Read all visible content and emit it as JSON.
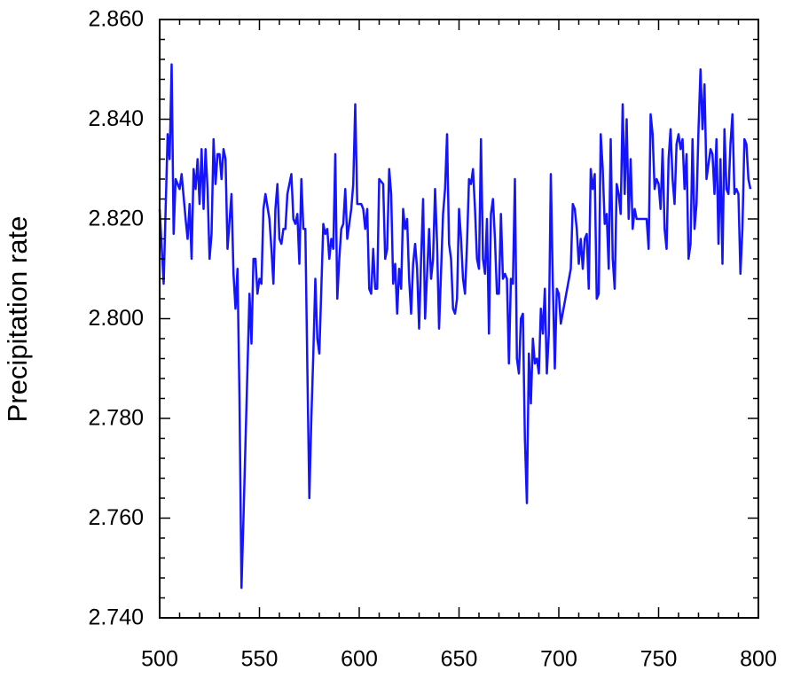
{
  "chart_data": {
    "type": "line",
    "ylabel": "Precipitation rate",
    "color": "#1414ff",
    "xlim": [
      500,
      800
    ],
    "ylim": [
      2.74,
      2.86
    ],
    "xticks": [
      500,
      550,
      600,
      650,
      700,
      750,
      800
    ],
    "xminorticks": [
      510,
      520,
      530,
      540,
      560,
      570,
      580,
      590,
      610,
      620,
      630,
      640,
      660,
      670,
      680,
      690,
      710,
      720,
      730,
      740,
      760,
      770,
      780,
      790
    ],
    "yticks": [
      {
        "value": 2.74,
        "label": "2.740"
      },
      {
        "value": 2.76,
        "label": "2.760"
      },
      {
        "value": 2.78,
        "label": "2.780"
      },
      {
        "value": 2.8,
        "label": "2.800"
      },
      {
        "value": 2.82,
        "label": "2.820"
      },
      {
        "value": 2.84,
        "label": "2.840"
      },
      {
        "value": 2.86,
        "label": "2.860"
      }
    ],
    "yminorticks": [
      2.744,
      2.748,
      2.752,
      2.756,
      2.764,
      2.768,
      2.772,
      2.776,
      2.784,
      2.788,
      2.792,
      2.796,
      2.804,
      2.808,
      2.812,
      2.816,
      2.824,
      2.828,
      2.832,
      2.836,
      2.844,
      2.848,
      2.852,
      2.856
    ],
    "x": [
      500,
      502,
      504,
      505,
      506,
      507,
      508,
      510,
      511,
      513,
      514,
      515,
      516,
      517,
      518,
      519,
      520,
      521,
      522,
      523,
      524,
      525,
      526,
      527,
      528,
      529,
      530,
      531,
      532,
      533,
      534,
      536,
      537,
      538,
      539,
      540,
      541,
      542,
      544,
      545,
      546,
      547,
      548,
      549,
      550,
      551,
      552,
      553,
      555,
      556,
      557,
      558,
      559,
      560,
      561,
      562,
      563,
      564,
      566,
      567,
      568,
      569,
      570,
      571,
      572,
      573,
      574,
      575,
      576,
      577,
      578,
      579,
      580,
      582,
      583,
      584,
      585,
      586,
      587,
      588,
      589,
      590,
      591,
      592,
      593,
      594,
      596,
      597,
      598,
      599,
      600,
      601,
      602,
      603,
      604,
      605,
      606,
      607,
      608,
      609,
      610,
      612,
      613,
      614,
      615,
      616,
      617,
      618,
      619,
      620,
      621,
      622,
      623,
      624,
      625,
      626,
      627,
      628,
      629,
      630,
      631,
      632,
      633,
      634,
      635,
      636,
      637,
      638,
      639,
      640,
      642,
      643,
      644,
      645,
      646,
      647,
      648,
      649,
      650,
      651,
      652,
      653,
      654,
      655,
      656,
      657,
      658,
      659,
      660,
      661,
      662,
      663,
      664,
      665,
      666,
      667,
      668,
      669,
      670,
      671,
      672,
      673,
      674,
      675,
      676,
      677,
      678,
      679,
      680,
      681,
      682,
      683,
      684,
      685,
      686,
      687,
      688,
      689,
      690,
      691,
      692,
      693,
      694,
      695,
      696,
      697,
      698,
      699,
      700,
      701,
      706,
      707,
      708,
      709,
      710,
      711,
      712,
      713,
      714,
      715,
      716,
      717,
      718,
      719,
      720,
      721,
      722,
      723,
      724,
      725,
      726,
      727,
      728,
      729,
      730,
      731,
      732,
      733,
      734,
      735,
      736,
      737,
      738,
      739,
      744,
      745,
      746,
      747,
      748,
      749,
      750,
      751,
      752,
      753,
      754,
      755,
      756,
      757,
      758,
      759,
      760,
      761,
      762,
      763,
      764,
      765,
      766,
      767,
      768,
      769,
      770,
      771,
      772,
      773,
      774,
      775,
      776,
      777,
      778,
      779,
      780,
      781,
      782,
      783,
      784,
      785,
      786,
      787,
      788,
      789,
      790,
      791,
      792,
      793,
      794,
      795,
      796
    ],
    "values": [
      2.822,
      2.807,
      2.837,
      2.832,
      2.851,
      2.817,
      2.828,
      2.826,
      2.829,
      2.82,
      2.816,
      2.823,
      2.812,
      2.83,
      2.826,
      2.832,
      2.823,
      2.834,
      2.822,
      2.834,
      2.826,
      2.812,
      2.817,
      2.836,
      2.827,
      2.833,
      2.833,
      2.828,
      2.834,
      2.832,
      2.814,
      2.825,
      2.809,
      2.802,
      2.81,
      2.784,
      2.746,
      2.76,
      2.79,
      2.805,
      2.795,
      2.812,
      2.812,
      2.805,
      2.808,
      2.807,
      2.822,
      2.825,
      2.82,
      2.814,
      2.807,
      2.822,
      2.827,
      2.816,
      2.815,
      2.818,
      2.818,
      2.825,
      2.829,
      2.82,
      2.819,
      2.821,
      2.811,
      2.828,
      2.818,
      2.818,
      2.79,
      2.764,
      2.78,
      2.793,
      2.808,
      2.796,
      2.793,
      2.819,
      2.817,
      2.818,
      2.812,
      2.816,
      2.814,
      2.833,
      2.804,
      2.812,
      2.818,
      2.819,
      2.826,
      2.816,
      2.822,
      2.827,
      2.843,
      2.823,
      2.823,
      2.823,
      2.822,
      2.818,
      2.822,
      2.806,
      2.805,
      2.814,
      2.806,
      2.806,
      2.828,
      2.827,
      2.812,
      2.814,
      2.83,
      2.825,
      2.807,
      2.811,
      2.801,
      2.81,
      2.806,
      2.822,
      2.818,
      2.82,
      2.808,
      2.801,
      2.811,
      2.815,
      2.81,
      2.798,
      2.812,
      2.824,
      2.8,
      2.809,
      2.818,
      2.808,
      2.812,
      2.826,
      2.815,
      2.798,
      2.821,
      2.826,
      2.837,
      2.815,
      2.812,
      2.802,
      2.801,
      2.804,
      2.822,
      2.816,
      2.808,
      2.805,
      2.815,
      2.828,
      2.827,
      2.83,
      2.822,
      2.812,
      2.81,
      2.836,
      2.812,
      2.809,
      2.82,
      2.797,
      2.821,
      2.824,
      2.816,
      2.805,
      2.805,
      2.821,
      2.808,
      2.809,
      2.808,
      2.791,
      2.808,
      2.807,
      2.828,
      2.792,
      2.789,
      2.8,
      2.801,
      2.776,
      2.763,
      2.793,
      2.783,
      2.796,
      2.791,
      2.792,
      2.789,
      2.802,
      2.797,
      2.806,
      2.789,
      2.797,
      2.829,
      2.807,
      2.79,
      2.806,
      2.805,
      2.799,
      2.81,
      2.823,
      2.822,
      2.818,
      2.811,
      2.816,
      2.81,
      2.816,
      2.817,
      2.806,
      2.83,
      2.826,
      2.829,
      2.804,
      2.805,
      2.837,
      2.83,
      2.819,
      2.821,
      2.81,
      2.836,
      2.812,
      2.806,
      2.827,
      2.825,
      2.821,
      2.843,
      2.825,
      2.84,
      2.82,
      2.832,
      2.818,
      2.822,
      2.82,
      2.82,
      2.814,
      2.841,
      2.837,
      2.826,
      2.828,
      2.827,
      2.822,
      2.834,
      2.818,
      2.814,
      2.832,
      2.838,
      2.828,
      2.823,
      2.835,
      2.837,
      2.834,
      2.836,
      2.826,
      2.833,
      2.812,
      2.815,
      2.836,
      2.818,
      2.823,
      2.838,
      2.85,
      2.838,
      2.847,
      2.828,
      2.831,
      2.834,
      2.833,
      2.825,
      2.836,
      2.815,
      2.832,
      2.811,
      2.838,
      2.826,
      2.825,
      2.835,
      2.841,
      2.825,
      2.826,
      2.825,
      2.809,
      2.818,
      2.836,
      2.835,
      2.828,
      2.826
    ]
  }
}
